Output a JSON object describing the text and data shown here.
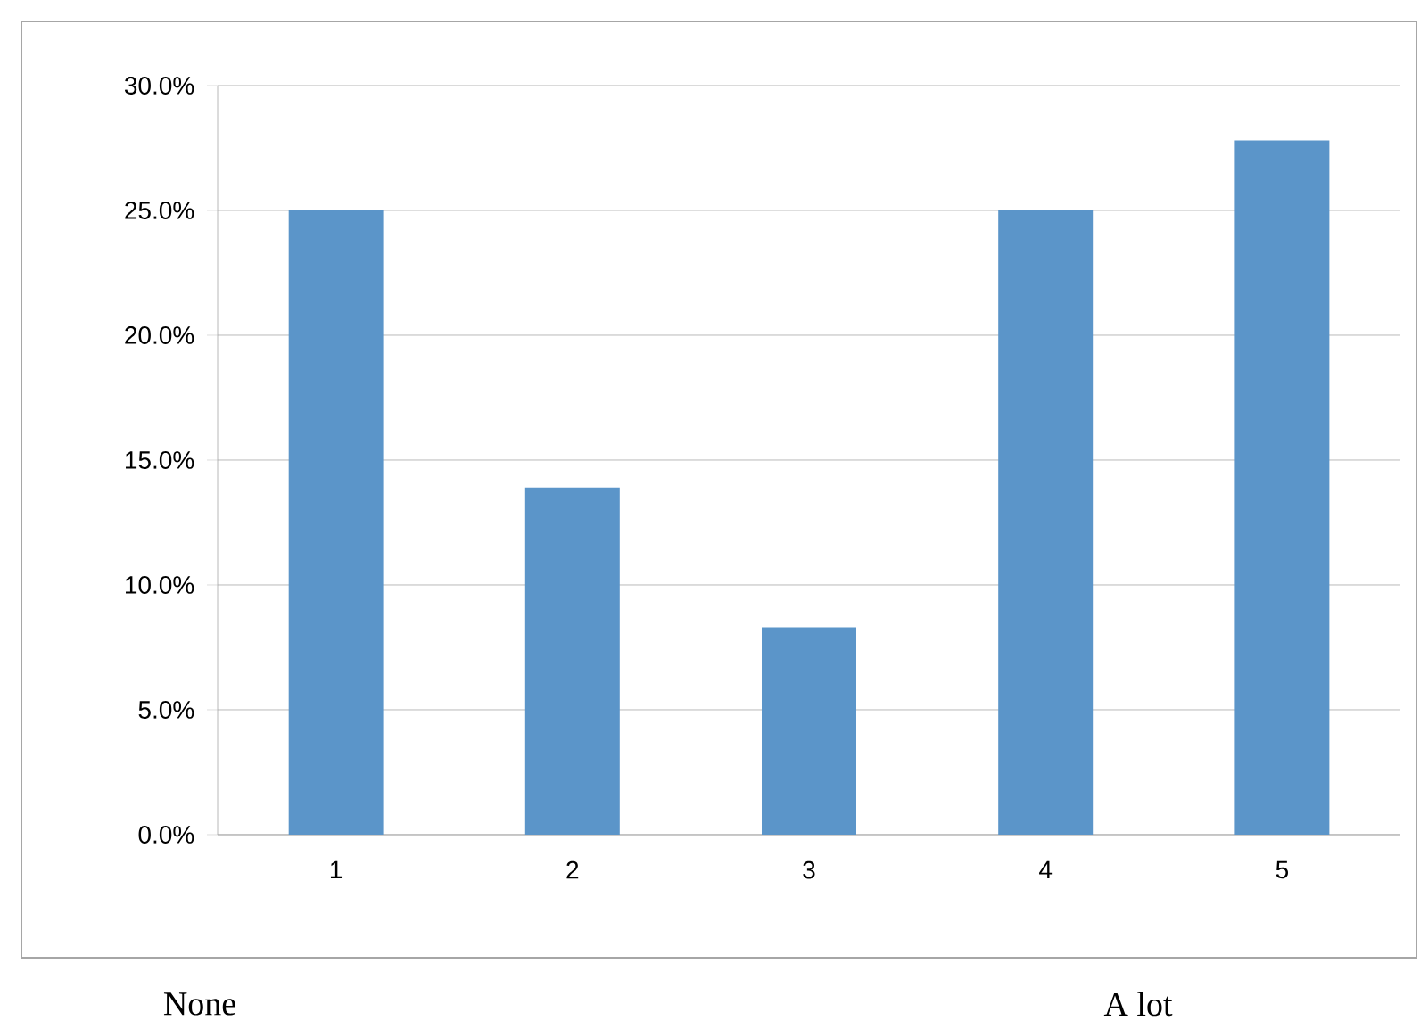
{
  "chart_data": {
    "type": "bar",
    "categories": [
      "1",
      "2",
      "3",
      "4",
      "5"
    ],
    "values": [
      25.0,
      13.9,
      8.3,
      25.0,
      27.8
    ],
    "color": "#5b95c9",
    "ylim": [
      0,
      30
    ],
    "yticks": [
      {
        "value": 0,
        "label": "0.0%"
      },
      {
        "value": 5,
        "label": "5.0%"
      },
      {
        "value": 10,
        "label": "10.0%"
      },
      {
        "value": 15,
        "label": "15.0%"
      },
      {
        "value": 20,
        "label": "20.0%"
      },
      {
        "value": 25,
        "label": "25.0%"
      },
      {
        "value": 30,
        "label": "30.0%"
      }
    ],
    "grid": "y",
    "annotations": [
      "None",
      "A lot"
    ]
  }
}
